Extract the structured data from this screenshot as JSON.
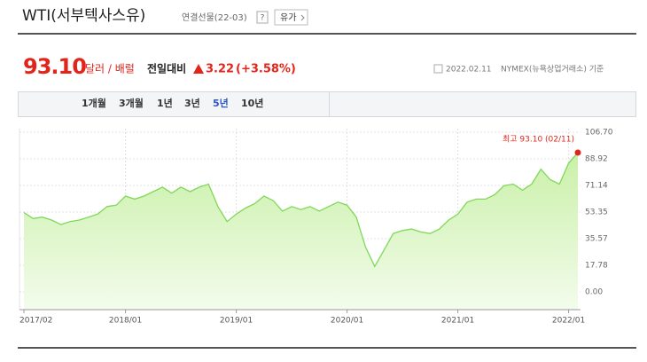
{
  "header": {
    "title": "WTI(서부텍사스유)",
    "subtitle": "연결선물(22-03)",
    "help": "?",
    "button": "유가"
  },
  "quote": {
    "price": "93.10",
    "unit": "달러 / 배럴",
    "change_label": "전일대비",
    "change": "3.22",
    "change_pct": "(+3.58%)",
    "date": "2022.02.11",
    "source": "NYMEX(뉴욕상업거래소) 기준"
  },
  "tabs": {
    "items": [
      "1개월",
      "3개월",
      "1년",
      "3년",
      "5년",
      "10년"
    ],
    "active": 4
  },
  "chart_data": {
    "type": "area",
    "color": "#7fd858",
    "x": [
      "2017/02",
      "2017/03",
      "2017/04",
      "2017/05",
      "2017/06",
      "2017/07",
      "2017/08",
      "2017/09",
      "2017/10",
      "2017/11",
      "2017/12",
      "2018/01",
      "2018/02",
      "2018/03",
      "2018/04",
      "2018/05",
      "2018/06",
      "2018/07",
      "2018/08",
      "2018/09",
      "2018/10",
      "2018/11",
      "2018/12",
      "2019/01",
      "2019/02",
      "2019/03",
      "2019/04",
      "2019/05",
      "2019/06",
      "2019/07",
      "2019/08",
      "2019/09",
      "2019/10",
      "2019/11",
      "2019/12",
      "2020/01",
      "2020/02",
      "2020/03",
      "2020/04",
      "2020/05",
      "2020/06",
      "2020/07",
      "2020/08",
      "2020/09",
      "2020/10",
      "2020/11",
      "2020/12",
      "2021/01",
      "2021/02",
      "2021/03",
      "2021/04",
      "2021/05",
      "2021/06",
      "2021/07",
      "2021/08",
      "2021/09",
      "2021/10",
      "2021/11",
      "2021/12",
      "2022/01",
      "2022/02"
    ],
    "values": [
      53,
      49,
      50,
      48,
      45,
      47,
      48,
      50,
      52,
      57,
      58,
      64,
      62,
      64,
      67,
      70,
      66,
      70,
      67,
      70,
      72,
      57,
      47,
      52,
      56,
      59,
      64,
      61,
      54,
      57,
      55,
      57,
      54,
      57,
      60,
      58,
      50,
      30,
      17,
      28,
      39,
      41,
      42,
      40,
      39,
      42,
      48,
      52,
      60,
      62,
      62,
      65,
      71,
      72,
      68,
      72,
      82,
      75,
      72,
      86,
      93.1
    ],
    "ylim": [
      0,
      106.7
    ],
    "yticks": [
      {
        "value": 0,
        "label": "0.00"
      },
      {
        "value": 17.78,
        "label": "17.78"
      },
      {
        "value": 35.57,
        "label": "35.57"
      },
      {
        "value": 53.35,
        "label": "53.35"
      },
      {
        "value": 71.14,
        "label": "71.14"
      },
      {
        "value": 88.92,
        "label": "88.92"
      },
      {
        "value": 106.7,
        "label": "106.70"
      }
    ],
    "xticks": [
      "2017/02",
      "2018/01",
      "2019/01",
      "2020/01",
      "2021/01",
      "2022/01"
    ],
    "annotation": "최고 93.10 (02/11)",
    "grid": true
  }
}
